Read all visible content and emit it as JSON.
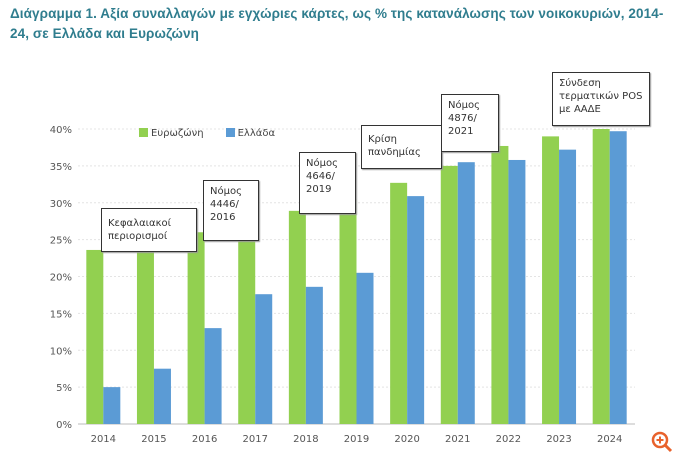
{
  "title": "Διάγραμμα 1. Αξία συναλλαγών με εγχώριες κάρτες, ως % της κατανάλωσης των νοικοκυριών, 2014-24, σε Ελλάδα και Ευρωζώνη",
  "chart_data": {
    "type": "bar",
    "categories": [
      "2014",
      "2015",
      "2016",
      "2017",
      "2018",
      "2019",
      "2020",
      "2021",
      "2022",
      "2023",
      "2024"
    ],
    "series": [
      {
        "name": "Ευρωζώνη",
        "color": "#92d050",
        "values": [
          23.6,
          24.8,
          26.0,
          27.1,
          28.9,
          30.5,
          32.7,
          35.0,
          37.7,
          39.0,
          40.0
        ]
      },
      {
        "name": "Ελλάδα",
        "color": "#5b9bd5",
        "values": [
          5.0,
          7.5,
          13.0,
          17.6,
          18.6,
          20.5,
          30.9,
          35.5,
          35.8,
          37.2,
          39.7
        ]
      }
    ],
    "ylim": [
      0,
      40
    ],
    "yticks": [
      "0%",
      "5%",
      "10%",
      "15%",
      "20%",
      "25%",
      "30%",
      "35%",
      "40%"
    ],
    "grid": true,
    "legend": "top-left",
    "annotations": [
      {
        "year": "2014",
        "text": "Κεφαλαιακοί περιορισμοί"
      },
      {
        "year": "2016",
        "text": "Νόμος 4446/ 2016"
      },
      {
        "year": "2019",
        "text": "Νόμος 4646/ 2019"
      },
      {
        "year": "2020",
        "text": "Κρίση πανδημίας"
      },
      {
        "year": "2021",
        "text": "Νόμος 4876/ 2021"
      },
      {
        "year": "2024",
        "text": "Σύνδεση τερματικών POS με ΑΑΔΕ"
      }
    ]
  },
  "zoom_icon": "zoom-in-icon",
  "accent": "#e8622c"
}
